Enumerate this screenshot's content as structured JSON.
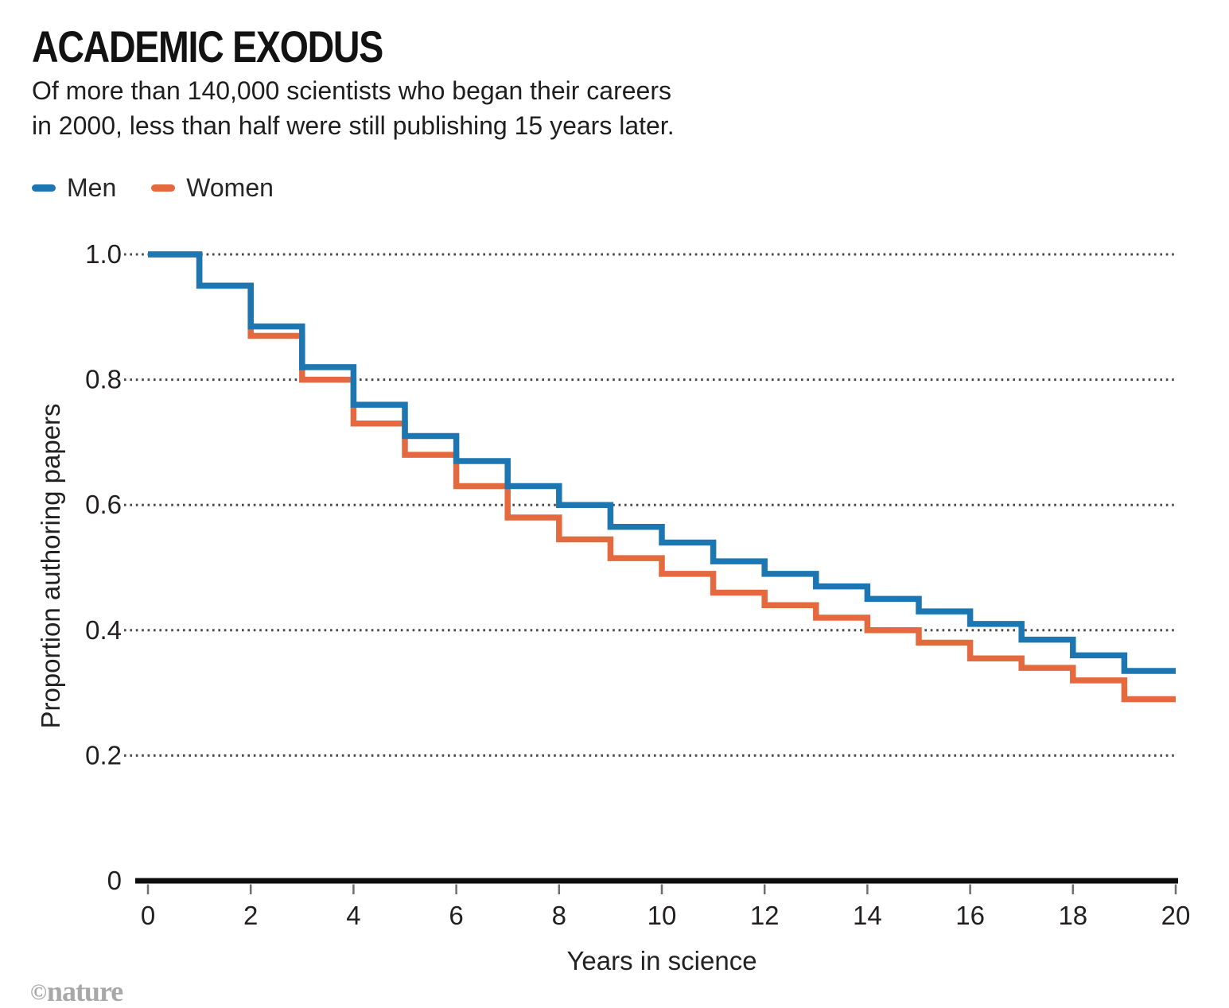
{
  "header": {
    "title": "ACADEMIC EXODUS",
    "subtitle_line1": "Of more than 140,000 scientists who began their careers",
    "subtitle_line2": "in 2000, less than half were still publishing 15 years later."
  },
  "legend": {
    "items": [
      {
        "label": "Men",
        "color": "#1b76b2"
      },
      {
        "label": "Women",
        "color": "#e5693f"
      }
    ]
  },
  "footer": {
    "credit_symbol": "©",
    "credit_name": "nature"
  },
  "chart_data": {
    "type": "line",
    "line_style": "step-after",
    "title": "ACADEMIC EXODUS",
    "xlabel": "Years in science",
    "ylabel": "Proportion authoring papers",
    "xlim": [
      0,
      20
    ],
    "ylim": [
      0,
      1.0
    ],
    "xticks": [
      0,
      2,
      4,
      6,
      8,
      10,
      12,
      14,
      16,
      18,
      20
    ],
    "yticks": [
      {
        "value": 1.0,
        "label": "1.0"
      },
      {
        "value": 0.8,
        "label": "0.8"
      },
      {
        "value": 0.6,
        "label": "0.6"
      },
      {
        "value": 0.4,
        "label": "0.4"
      },
      {
        "value": 0.2,
        "label": "0.2"
      },
      {
        "value": 0,
        "label": "0"
      }
    ],
    "gridlines": [
      1.0,
      0.8,
      0.6,
      0.4,
      0.2
    ],
    "grid_style": "dotted-horizontal",
    "legend_position": "top-left",
    "x": [
      0,
      1,
      2,
      3,
      4,
      5,
      6,
      7,
      8,
      9,
      10,
      11,
      12,
      13,
      14,
      15,
      16,
      17,
      18,
      19
    ],
    "series": [
      {
        "name": "Men",
        "color": "#1b76b2",
        "values": [
          1.0,
          0.95,
          0.885,
          0.82,
          0.76,
          0.71,
          0.67,
          0.63,
          0.6,
          0.565,
          0.54,
          0.51,
          0.49,
          0.47,
          0.45,
          0.43,
          0.41,
          0.385,
          0.36,
          0.335
        ]
      },
      {
        "name": "Women",
        "color": "#e5693f",
        "values": [
          1.0,
          0.95,
          0.87,
          0.8,
          0.73,
          0.68,
          0.63,
          0.58,
          0.545,
          0.515,
          0.49,
          0.46,
          0.44,
          0.42,
          0.4,
          0.38,
          0.355,
          0.34,
          0.32,
          0.29
        ]
      }
    ],
    "series_note": "values[i] = proportion publishing during year interval [i, i+1); curves end at year 20"
  }
}
